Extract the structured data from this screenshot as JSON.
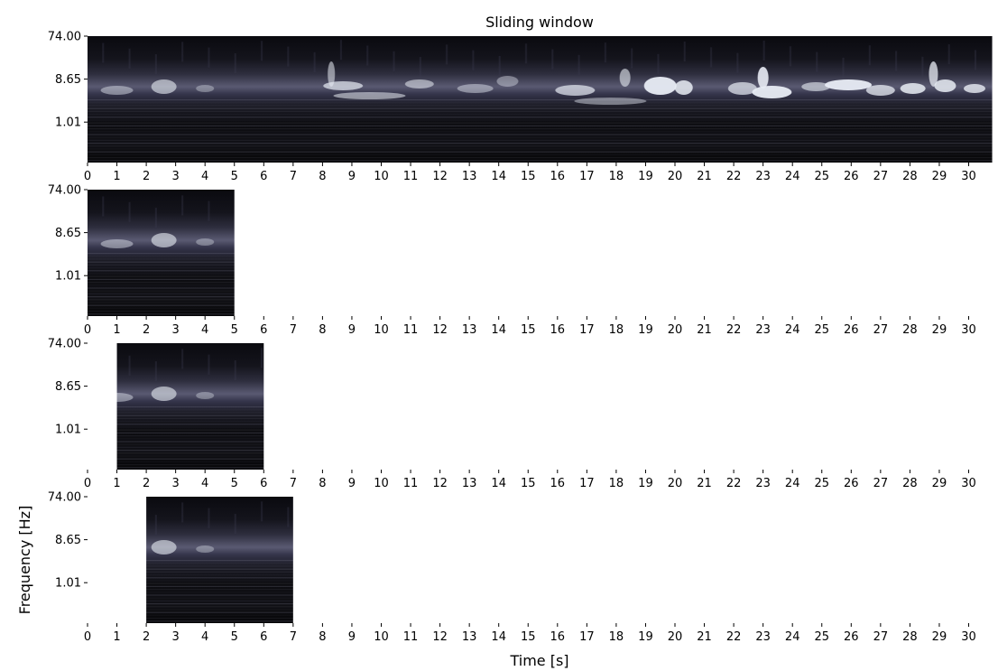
{
  "chart_data": {
    "type": "heatmap",
    "title": "Sliding window",
    "xlabel": "Time [s]",
    "ylabel": "Frequency [Hz]",
    "colormap": "bone",
    "x_ticks": [
      "0",
      "1",
      "2",
      "3",
      "4",
      "5",
      "6",
      "7",
      "8",
      "9",
      "10",
      "11",
      "12",
      "13",
      "14",
      "15",
      "16",
      "17",
      "18",
      "19",
      "20",
      "21",
      "22",
      "23",
      "24",
      "25",
      "26",
      "27",
      "28",
      "29",
      "30"
    ],
    "y_ticks": [
      {
        "value": 74.0,
        "label": "74.00"
      },
      {
        "value": 8.65,
        "label": "8.65"
      },
      {
        "value": 1.01,
        "label": "1.01"
      }
    ],
    "xlim": [
      0,
      30.8
    ],
    "panels": [
      {
        "name": "full-signal",
        "t_start": 0,
        "t_end": 30.8
      },
      {
        "name": "window-1",
        "t_start": 0,
        "t_end": 5
      },
      {
        "name": "window-2",
        "t_start": 1,
        "t_end": 6
      },
      {
        "name": "window-3",
        "t_start": 2,
        "t_end": 7
      }
    ]
  }
}
